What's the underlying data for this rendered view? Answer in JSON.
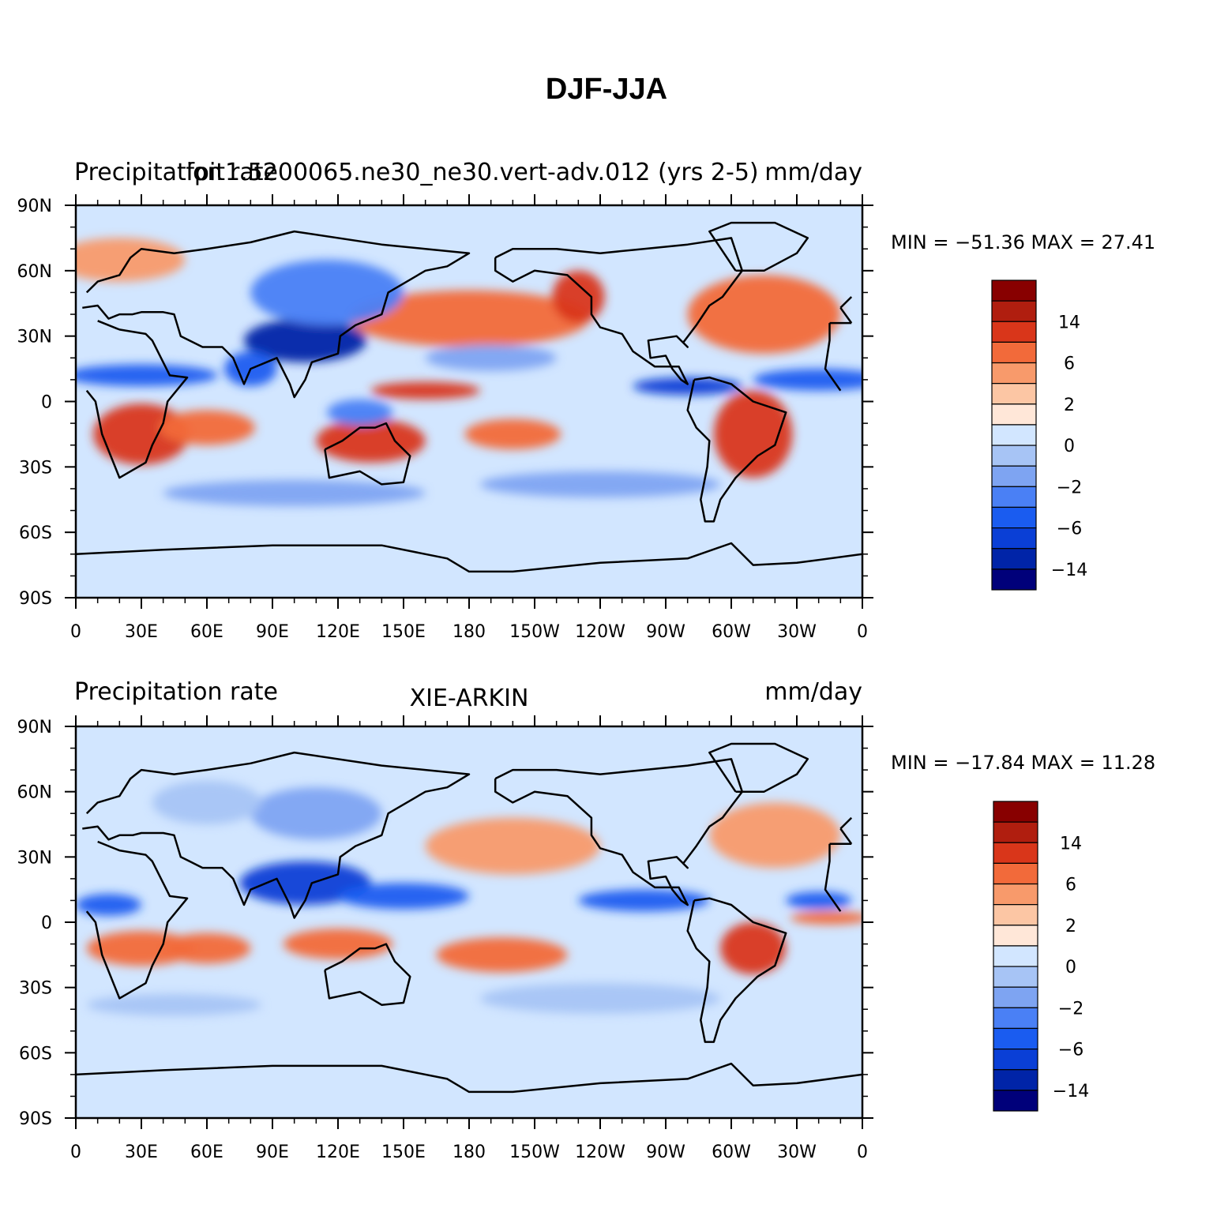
{
  "figure": {
    "title": "DJF-JJA"
  },
  "colors": {
    "levels_palette": [
      "#00007a",
      "#0024a8",
      "#0a3fd6",
      "#1a5cf0",
      "#4a80f5",
      "#7ea4f2",
      "#a7c4f5",
      "#d2e6ff",
      "#ffe7d8",
      "#fcc6a4",
      "#f89a6b",
      "#f26a3a",
      "#d9361a",
      "#b01e0f",
      "#880000"
    ]
  },
  "chart_data": [
    {
      "type": "heatmap",
      "title_left": "Precipitation rate",
      "title_center": "fpit1.5200065.ne30_ne30.vert-adv.012 (yrs 2-5)",
      "title_right": "mm/day",
      "minmax": "MIN = −51.36  MAX =   27.41",
      "x_ticks": [
        "0",
        "30E",
        "60E",
        "90E",
        "120E",
        "150E",
        "180",
        "150W",
        "120W",
        "90W",
        "60W",
        "30W",
        "0"
      ],
      "y_ticks": [
        "90N",
        "60N",
        "30N",
        "0",
        "30S",
        "60S",
        "90S"
      ],
      "xlim": [
        0,
        360
      ],
      "ylim": [
        -90,
        90
      ],
      "colorbar_labels": [
        "14",
        "6",
        "2",
        "0",
        "−2",
        "−6",
        "−14"
      ],
      "features": [
        {
          "lon": 30,
          "lat": -15,
          "level": 12,
          "rx": 22,
          "ry": 14
        },
        {
          "lon": 60,
          "lat": -12,
          "level": 11,
          "rx": 22,
          "ry": 8
        },
        {
          "lon": 135,
          "lat": -18,
          "level": 12,
          "rx": 25,
          "ry": 10
        },
        {
          "lon": 200,
          "lat": -15,
          "level": 11,
          "rx": 22,
          "ry": 7
        },
        {
          "lon": 310,
          "lat": -15,
          "level": 12,
          "rx": 18,
          "ry": 20
        },
        {
          "lon": 180,
          "lat": 38,
          "level": 11,
          "rx": 55,
          "ry": 13
        },
        {
          "lon": 315,
          "lat": 40,
          "level": 11,
          "rx": 35,
          "ry": 18
        },
        {
          "lon": 20,
          "lat": 65,
          "level": 10,
          "rx": 30,
          "ry": 10
        },
        {
          "lon": 160,
          "lat": 5,
          "level": 12,
          "rx": 25,
          "ry": 4
        },
        {
          "lon": 230,
          "lat": 48,
          "level": 12,
          "rx": 12,
          "ry": 12
        },
        {
          "lon": 105,
          "lat": 28,
          "level": 1,
          "rx": 28,
          "ry": 10
        },
        {
          "lon": 30,
          "lat": 12,
          "level": 3,
          "rx": 35,
          "ry": 5
        },
        {
          "lon": 340,
          "lat": 10,
          "level": 3,
          "rx": 30,
          "ry": 5
        },
        {
          "lon": 280,
          "lat": 7,
          "level": 2,
          "rx": 25,
          "ry": 4
        },
        {
          "lon": 80,
          "lat": 15,
          "level": 3,
          "rx": 12,
          "ry": 8
        },
        {
          "lon": 130,
          "lat": -5,
          "level": 4,
          "rx": 15,
          "ry": 6
        },
        {
          "lon": 115,
          "lat": 50,
          "level": 4,
          "rx": 35,
          "ry": 15
        },
        {
          "lon": 100,
          "lat": -42,
          "level": 5,
          "rx": 60,
          "ry": 6
        },
        {
          "lon": 240,
          "lat": -38,
          "level": 5,
          "rx": 55,
          "ry": 6
        },
        {
          "lon": 190,
          "lat": 20,
          "level": 5,
          "rx": 30,
          "ry": 6
        }
      ]
    },
    {
      "type": "heatmap",
      "title_left": "Precipitation rate",
      "title_center": "XIE-ARKIN",
      "title_right": "mm/day",
      "minmax": "MIN = −17.84  MAX =   11.28",
      "x_ticks": [
        "0",
        "30E",
        "60E",
        "90E",
        "120E",
        "150E",
        "180",
        "150W",
        "120W",
        "90W",
        "60W",
        "30W",
        "0"
      ],
      "y_ticks": [
        "90N",
        "60N",
        "30N",
        "0",
        "30S",
        "60S",
        "90S"
      ],
      "xlim": [
        0,
        360
      ],
      "ylim": [
        -90,
        90
      ],
      "colorbar_labels": [
        "14",
        "6",
        "2",
        "0",
        "−2",
        "−6",
        "−14"
      ],
      "features": [
        {
          "lon": 30,
          "lat": -12,
          "level": 11,
          "rx": 25,
          "ry": 8
        },
        {
          "lon": 60,
          "lat": -12,
          "level": 11,
          "rx": 20,
          "ry": 7
        },
        {
          "lon": 120,
          "lat": -10,
          "level": 11,
          "rx": 25,
          "ry": 7
        },
        {
          "lon": 195,
          "lat": -15,
          "level": 11,
          "rx": 30,
          "ry": 8
        },
        {
          "lon": 310,
          "lat": -12,
          "level": 12,
          "rx": 15,
          "ry": 12
        },
        {
          "lon": 200,
          "lat": 35,
          "level": 10,
          "rx": 40,
          "ry": 13
        },
        {
          "lon": 320,
          "lat": 40,
          "level": 10,
          "rx": 30,
          "ry": 15
        },
        {
          "lon": 345,
          "lat": 2,
          "level": 11,
          "rx": 18,
          "ry": 3
        },
        {
          "lon": 105,
          "lat": 18,
          "level": 2,
          "rx": 30,
          "ry": 10
        },
        {
          "lon": 150,
          "lat": 12,
          "level": 3,
          "rx": 30,
          "ry": 6
        },
        {
          "lon": 260,
          "lat": 10,
          "level": 3,
          "rx": 30,
          "ry": 5
        },
        {
          "lon": 15,
          "lat": 8,
          "level": 3,
          "rx": 15,
          "ry": 5
        },
        {
          "lon": 340,
          "lat": 10,
          "level": 3,
          "rx": 15,
          "ry": 4
        },
        {
          "lon": 110,
          "lat": 50,
          "level": 5,
          "rx": 30,
          "ry": 12
        },
        {
          "lon": 60,
          "lat": 55,
          "level": 6,
          "rx": 25,
          "ry": 10
        },
        {
          "lon": 240,
          "lat": -35,
          "level": 6,
          "rx": 55,
          "ry": 7
        },
        {
          "lon": 45,
          "lat": -38,
          "level": 6,
          "rx": 40,
          "ry": 5
        }
      ]
    }
  ]
}
